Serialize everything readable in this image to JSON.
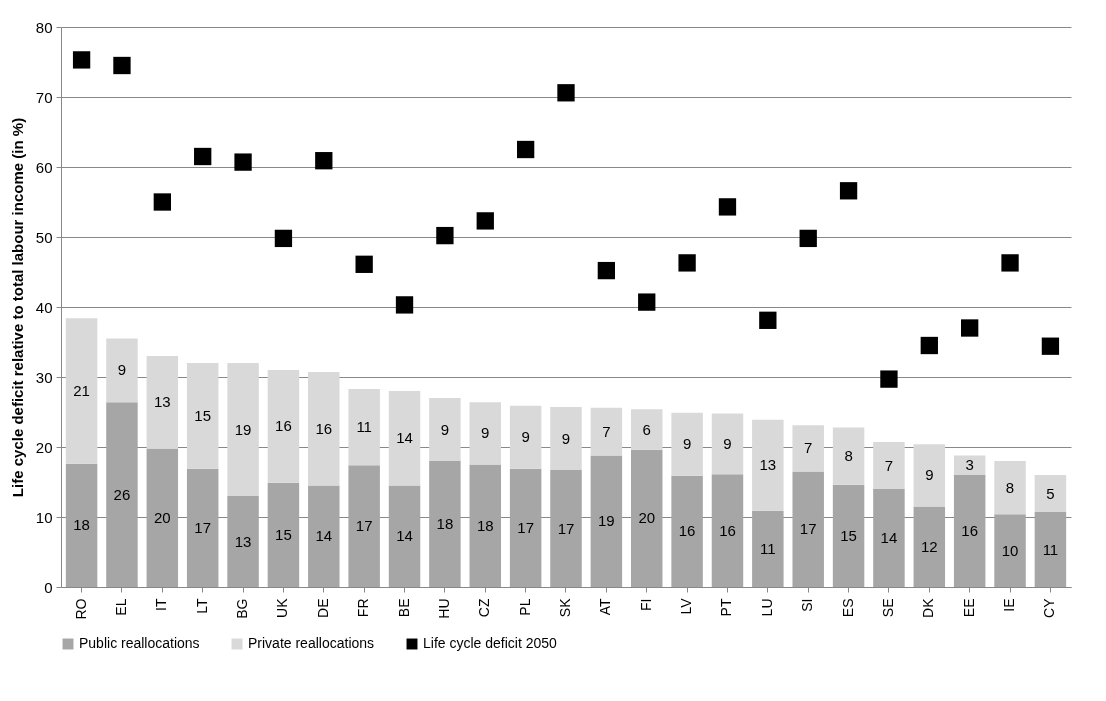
{
  "chart_data": {
    "type": "bar",
    "stacked": true,
    "ylabel": "Life cycle deficit relative to total labour income (in %)",
    "categories": [
      "RO",
      "EL",
      "IT",
      "LT",
      "BG",
      "UK",
      "DE",
      "FR",
      "BE",
      "HU",
      "CZ",
      "PL",
      "SK",
      "AT",
      "FI",
      "LV",
      "PT",
      "LU",
      "SI",
      "ES",
      "SE",
      "DK",
      "EE",
      "IE",
      "CY"
    ],
    "series": [
      {
        "name": "Public reallocations",
        "type": "bar",
        "color": "#a6a6a6",
        "values": [
          17.6,
          26.4,
          19.8,
          16.9,
          13,
          14.9,
          14.5,
          17.4,
          14.5,
          18,
          17.5,
          16.9,
          16.7,
          18.8,
          19.6,
          15.9,
          16.1,
          10.9,
          16.5,
          14.6,
          14,
          11.5,
          16,
          10.4,
          10.7
        ],
        "value_labels": [
          "18",
          "26",
          "20",
          "17",
          "13",
          "15",
          "14",
          "17",
          "14",
          "18",
          "18",
          "17",
          "17",
          "19",
          "20",
          "16",
          "16",
          "11",
          "17",
          "15",
          "14",
          "12",
          "16",
          "10",
          "11"
        ]
      },
      {
        "name": "Private reallocations",
        "type": "bar",
        "color": "#d9d9d9",
        "values": [
          20.8,
          9.1,
          13.2,
          15.1,
          19,
          16.1,
          16.2,
          10.9,
          13.5,
          9,
          8.9,
          9,
          9,
          6.8,
          5.8,
          9,
          8.7,
          13,
          6.6,
          8.2,
          6.7,
          8.9,
          2.8,
          7.6,
          5.3
        ],
        "value_labels": [
          "21",
          "9",
          "13",
          "15",
          "19",
          "16",
          "16",
          "11",
          "14",
          "9",
          "9",
          "9",
          "9",
          "7",
          "6",
          "9",
          "9",
          "13",
          "7",
          "8",
          "7",
          "9",
          "3",
          "8",
          "5"
        ]
      },
      {
        "name": "Life cycle deficit 2050",
        "type": "scatter",
        "color": "#000000",
        "values": [
          75.3,
          74.5,
          55,
          61.5,
          60.7,
          49.8,
          60.9,
          46.1,
          40.3,
          50.2,
          52.3,
          62.5,
          70.6,
          45.2,
          40.7,
          46.3,
          54.3,
          38.1,
          49.8,
          56.6,
          29.7,
          34.5,
          37,
          46.3,
          34.4
        ]
      }
    ],
    "ylim": [
      0,
      80
    ],
    "yticks": [
      0,
      10,
      20,
      30,
      40,
      50,
      60,
      70,
      80
    ],
    "grid": "y",
    "legend": "bottom",
    "marker": "square"
  }
}
